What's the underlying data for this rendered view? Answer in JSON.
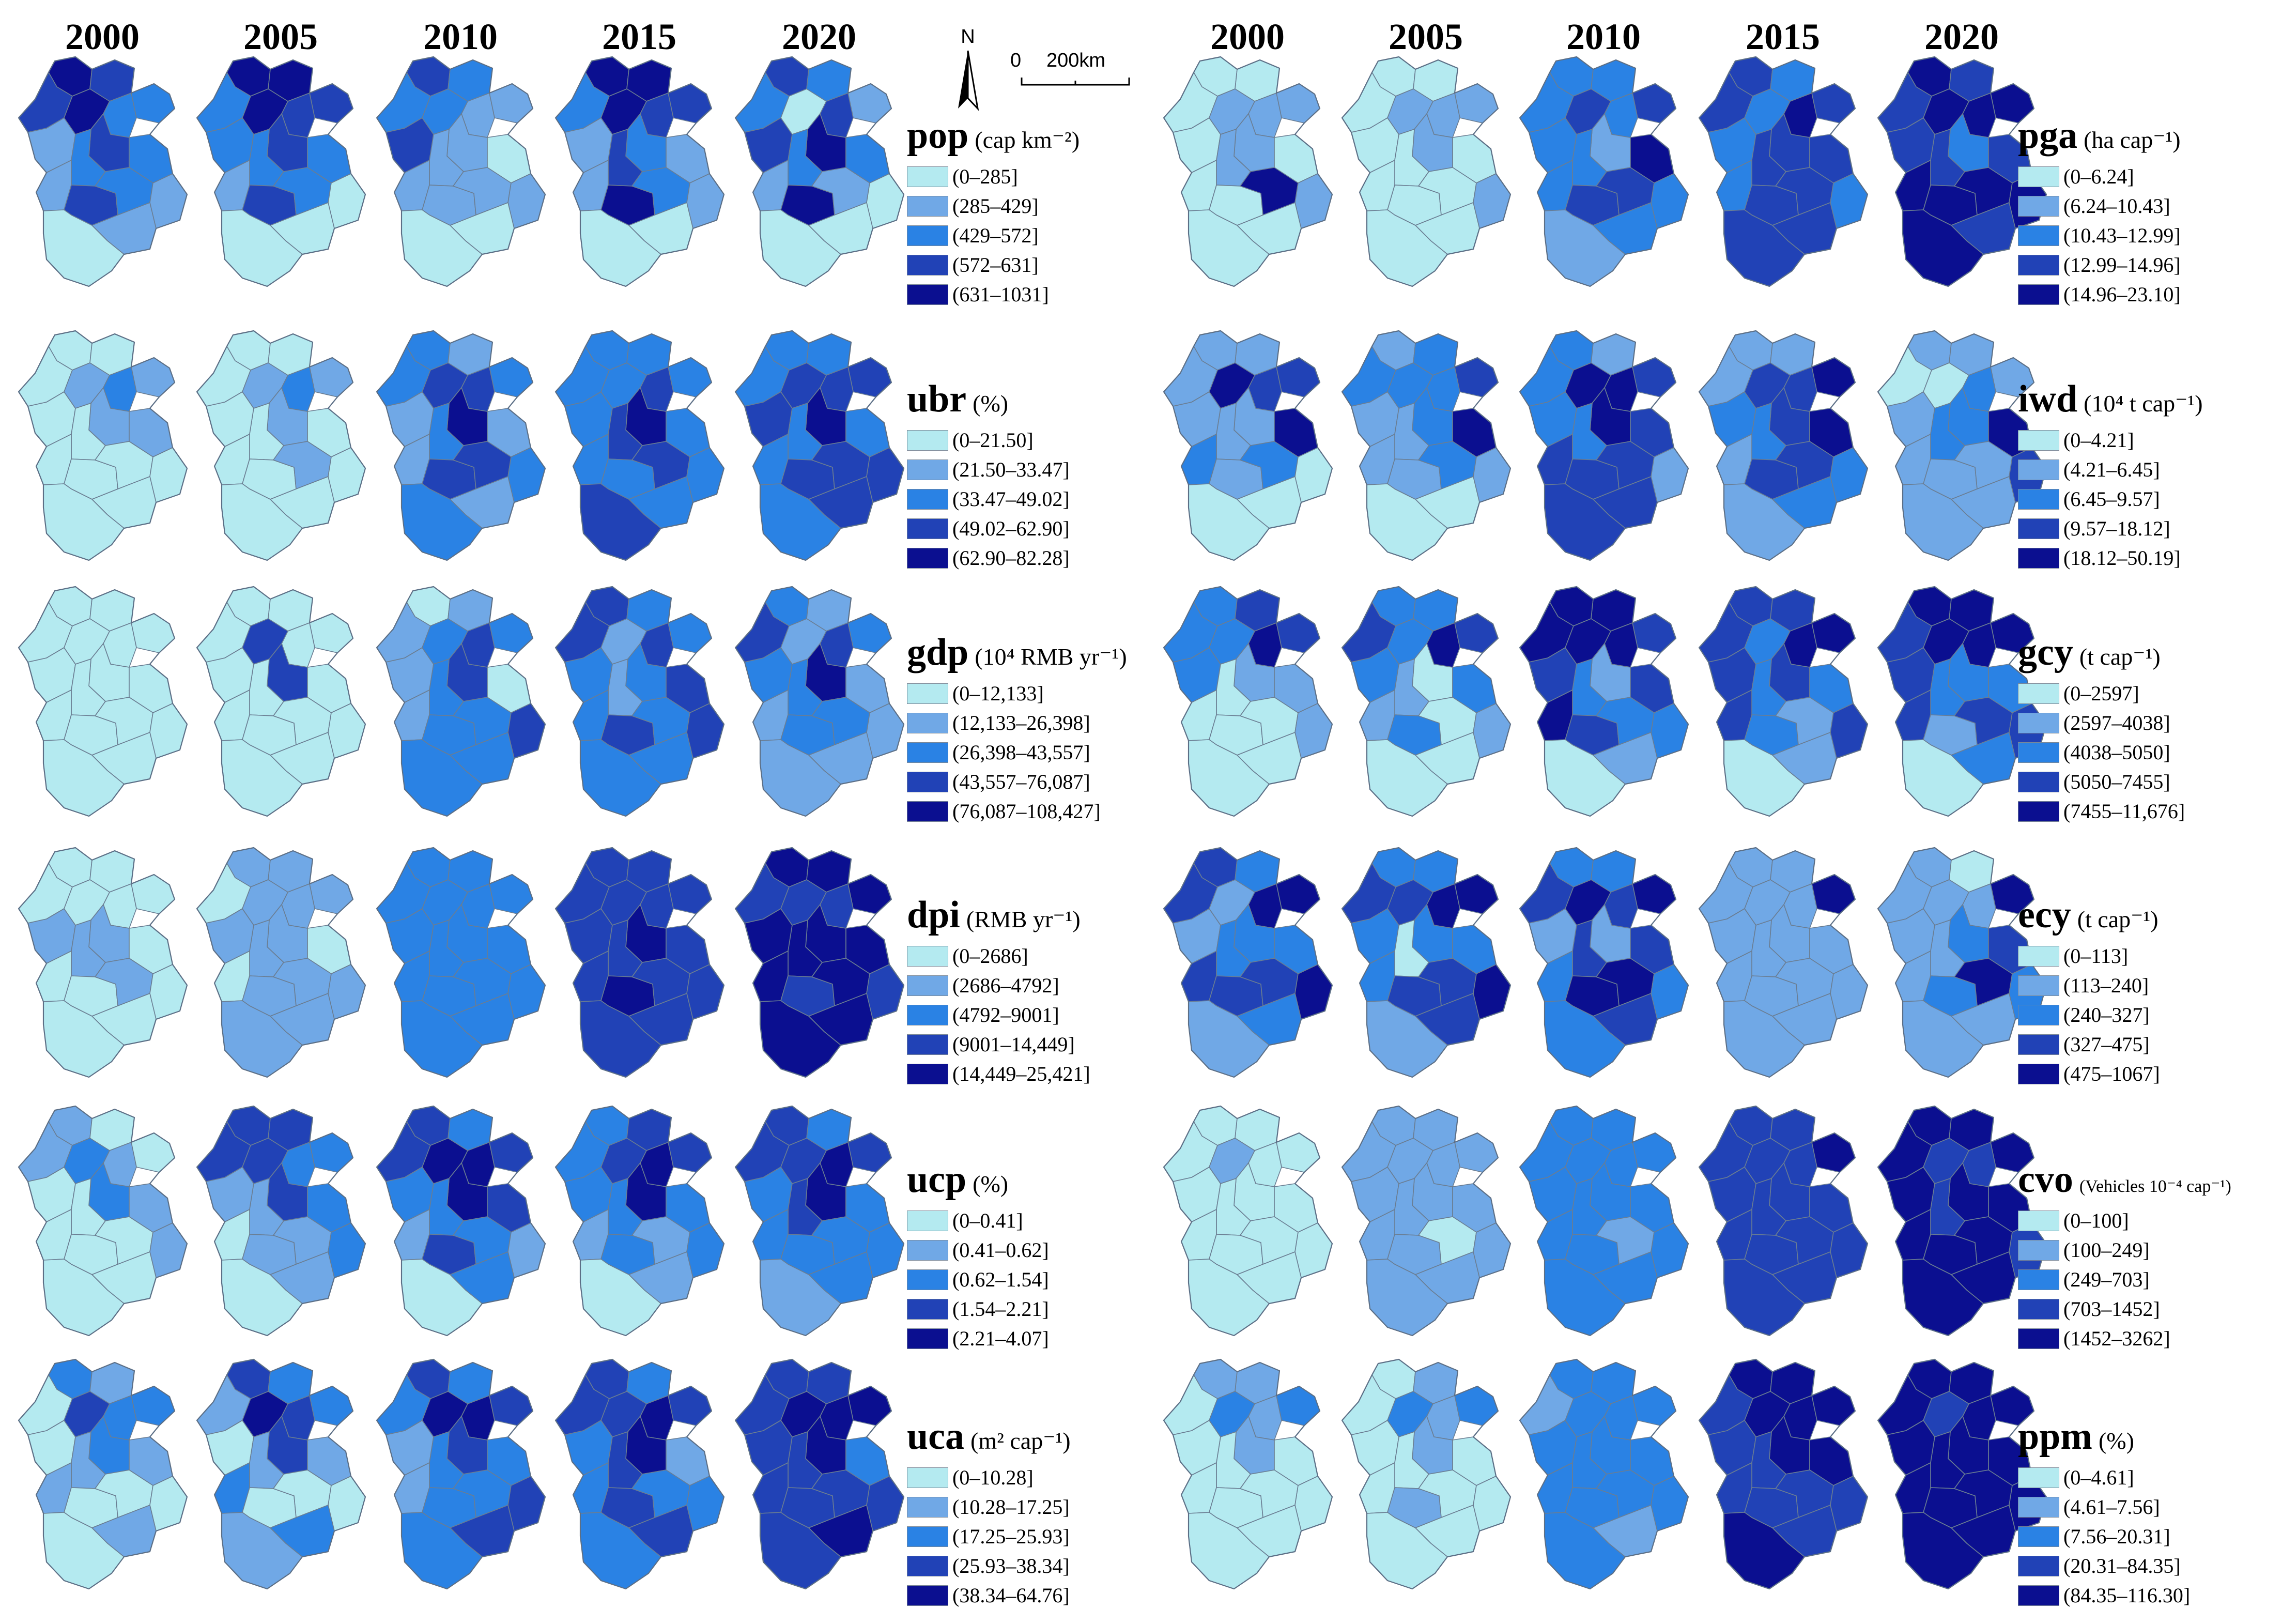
{
  "years_left": [
    "2000",
    "2005",
    "2010",
    "2015",
    "2020"
  ],
  "years_right": [
    "2000",
    "2005",
    "2010",
    "2015",
    "2020"
  ],
  "north_label": "N",
  "scale_start": "0",
  "scale_end": "200km",
  "palette": [
    "#b4eaf0",
    "#70a8e6",
    "#2a82e4",
    "#2142b6",
    "#0b0f90"
  ],
  "indicators": {
    "pop": {
      "abbr": "pop",
      "unit": "(cap km⁻²)",
      "classes": [
        "(0–285]",
        "(285–429]",
        "(429–572]",
        "(572–631]",
        "(631–1031]"
      ],
      "levels": [
        [
          4,
          3,
          2,
          2,
          3,
          1,
          4,
          3,
          2,
          1,
          3,
          2,
          2,
          1,
          1,
          0
        ],
        [
          4,
          4,
          3,
          3,
          2,
          2,
          4,
          3,
          2,
          1,
          3,
          2,
          2,
          0,
          0,
          0
        ],
        [
          3,
          2,
          1,
          1,
          2,
          3,
          2,
          1,
          1,
          1,
          1,
          0,
          1,
          1,
          0,
          0
        ],
        [
          4,
          4,
          3,
          3,
          2,
          1,
          4,
          2,
          3,
          1,
          4,
          1,
          2,
          1,
          0,
          0
        ],
        [
          3,
          2,
          1,
          3,
          2,
          3,
          0,
          4,
          2,
          1,
          4,
          2,
          1,
          0,
          0,
          0
        ]
      ]
    },
    "ubr": {
      "abbr": "ubr",
      "unit": "(%)",
      "classes": [
        "(0–21.50]",
        "(21.50–33.47]",
        "(33.47–49.02]",
        "(49.02–62.90]",
        "(62.90–82.28]"
      ],
      "levels": [
        [
          0,
          0,
          1,
          2,
          0,
          0,
          1,
          1,
          0,
          0,
          0,
          1,
          0,
          0,
          0,
          0
        ],
        [
          0,
          0,
          1,
          2,
          0,
          0,
          1,
          1,
          0,
          0,
          0,
          0,
          1,
          0,
          0,
          0
        ],
        [
          2,
          1,
          2,
          3,
          2,
          1,
          3,
          4,
          2,
          1,
          3,
          1,
          3,
          2,
          1,
          2
        ],
        [
          2,
          2,
          2,
          3,
          2,
          2,
          2,
          4,
          3,
          2,
          2,
          2,
          3,
          2,
          2,
          3
        ],
        [
          2,
          2,
          3,
          3,
          2,
          3,
          3,
          4,
          2,
          2,
          3,
          2,
          3,
          3,
          3,
          2
        ]
      ]
    },
    "gdp": {
      "abbr": "gdp",
      "unit": "(10⁴ RMB yr⁻¹)",
      "classes": [
        "(0–12,133]",
        "(12,133–26,398]",
        "(26,398–43,557]",
        "(43,557–76,087]",
        "(76,087–108,427]"
      ],
      "levels": [
        [
          0,
          0,
          0,
          0,
          0,
          0,
          0,
          0,
          0,
          0,
          0,
          0,
          0,
          0,
          0,
          0
        ],
        [
          0,
          0,
          0,
          0,
          0,
          0,
          3,
          3,
          0,
          0,
          0,
          0,
          0,
          0,
          0,
          0
        ],
        [
          0,
          1,
          2,
          3,
          1,
          1,
          2,
          3,
          2,
          1,
          2,
          0,
          2,
          3,
          2,
          2
        ],
        [
          3,
          2,
          2,
          3,
          3,
          2,
          1,
          2,
          1,
          2,
          3,
          3,
          2,
          3,
          2,
          2
        ],
        [
          2,
          1,
          2,
          3,
          3,
          2,
          1,
          4,
          2,
          1,
          2,
          1,
          2,
          1,
          1,
          1
        ]
      ]
    },
    "dpi": {
      "abbr": "dpi",
      "unit": "(RMB yr⁻¹)",
      "classes": [
        "(0–2686]",
        "(2686–4792]",
        "(4792–9001]",
        "(9001–14,449]",
        "(14,449–25,421]"
      ],
      "levels": [
        [
          0,
          0,
          0,
          0,
          0,
          1,
          0,
          1,
          1,
          0,
          0,
          0,
          1,
          0,
          0,
          0
        ],
        [
          1,
          1,
          1,
          1,
          0,
          1,
          1,
          1,
          1,
          0,
          1,
          0,
          1,
          1,
          1,
          1
        ],
        [
          2,
          2,
          2,
          2,
          2,
          2,
          2,
          2,
          2,
          2,
          2,
          2,
          2,
          2,
          2,
          2
        ],
        [
          3,
          3,
          3,
          3,
          3,
          3,
          3,
          4,
          3,
          3,
          4,
          3,
          3,
          3,
          3,
          3
        ],
        [
          4,
          4,
          4,
          3,
          3,
          4,
          3,
          4,
          4,
          4,
          3,
          4,
          4,
          3,
          4,
          4
        ]
      ]
    },
    "ucp": {
      "abbr": "ucp",
      "unit": "(%)",
      "classes": [
        "(0–0.41]",
        "(0.41–0.62]",
        "(0.62–1.54]",
        "(1.54–2.21]",
        "(2.21–4.07]"
      ],
      "levels": [
        [
          1,
          0,
          0,
          1,
          1,
          0,
          2,
          2,
          0,
          0,
          0,
          1,
          0,
          1,
          0,
          0
        ],
        [
          3,
          3,
          2,
          2,
          3,
          1,
          3,
          3,
          1,
          0,
          1,
          2,
          1,
          2,
          1,
          0
        ],
        [
          3,
          2,
          3,
          4,
          3,
          2,
          4,
          4,
          2,
          1,
          3,
          3,
          2,
          1,
          2,
          0
        ],
        [
          2,
          3,
          3,
          4,
          2,
          2,
          3,
          4,
          2,
          1,
          2,
          2,
          1,
          2,
          1,
          0
        ],
        [
          3,
          2,
          3,
          4,
          3,
          2,
          3,
          4,
          3,
          2,
          2,
          2,
          2,
          2,
          2,
          1
        ]
      ]
    },
    "uca": {
      "abbr": "uca",
      "unit": "(m² cap⁻¹)",
      "classes": [
        "(0–10.28]",
        "(10.28–17.25]",
        "(17.25–25.93]",
        "(25.93–38.34]",
        "(38.34–64.76]"
      ],
      "levels": [
        [
          2,
          1,
          2,
          2,
          0,
          0,
          3,
          2,
          1,
          1,
          0,
          1,
          0,
          0,
          1,
          0
        ],
        [
          3,
          2,
          2,
          3,
          1,
          0,
          4,
          3,
          1,
          2,
          0,
          1,
          0,
          0,
          2,
          1
        ],
        [
          3,
          2,
          3,
          4,
          2,
          1,
          4,
          3,
          2,
          1,
          2,
          2,
          2,
          3,
          3,
          2
        ],
        [
          3,
          2,
          3,
          4,
          3,
          2,
          3,
          4,
          3,
          2,
          3,
          1,
          2,
          2,
          3,
          2
        ],
        [
          3,
          3,
          4,
          4,
          3,
          3,
          4,
          4,
          3,
          3,
          3,
          2,
          3,
          3,
          4,
          3
        ]
      ]
    },
    "pga": {
      "abbr": "pga",
      "unit": "(ha cap⁻¹)",
      "classes": [
        "(0–6.24]",
        "(6.24–10.43]",
        "(10.43–12.99]",
        "(12.99–14.96]",
        "(14.96–23.10]"
      ],
      "levels": [
        [
          0,
          0,
          1,
          1,
          0,
          0,
          1,
          1,
          1,
          0,
          0,
          0,
          4,
          1,
          0,
          0
        ],
        [
          0,
          0,
          1,
          1,
          0,
          0,
          1,
          1,
          0,
          0,
          0,
          0,
          0,
          1,
          0,
          0
        ],
        [
          2,
          2,
          3,
          2,
          2,
          2,
          3,
          1,
          2,
          2,
          3,
          4,
          3,
          2,
          2,
          1
        ],
        [
          3,
          2,
          3,
          4,
          3,
          2,
          2,
          3,
          3,
          2,
          3,
          3,
          3,
          2,
          3,
          3
        ],
        [
          4,
          3,
          4,
          4,
          3,
          3,
          4,
          2,
          3,
          4,
          4,
          3,
          4,
          4,
          3,
          4
        ]
      ]
    },
    "iwd": {
      "abbr": "iwd",
      "unit": "(10⁴ t cap⁻¹)",
      "classes": [
        "(0–4.21]",
        "(4.21–6.45]",
        "(6.45–9.57]",
        "(9.57–18.12]",
        "(18.12–50.19]"
      ],
      "levels": [
        [
          1,
          1,
          3,
          3,
          1,
          1,
          4,
          1,
          1,
          2,
          1,
          4,
          2,
          0,
          0,
          0
        ],
        [
          1,
          2,
          3,
          2,
          2,
          1,
          2,
          2,
          1,
          1,
          1,
          4,
          2,
          1,
          0,
          0
        ],
        [
          2,
          1,
          3,
          4,
          2,
          2,
          4,
          4,
          2,
          3,
          3,
          3,
          3,
          1,
          3,
          3
        ],
        [
          1,
          1,
          4,
          3,
          1,
          2,
          3,
          3,
          2,
          1,
          3,
          4,
          3,
          2,
          2,
          1
        ],
        [
          1,
          1,
          1,
          2,
          0,
          1,
          0,
          2,
          2,
          1,
          1,
          4,
          1,
          3,
          1,
          1
        ]
      ]
    },
    "gcy": {
      "abbr": "gcy",
      "unit": "(t cap⁻¹)",
      "classes": [
        "(0–2597]",
        "(2597–4038]",
        "(4038–5050]",
        "(5050–7455]",
        "(7455–11,676]"
      ],
      "levels": [
        [
          2,
          3,
          3,
          4,
          2,
          2,
          2,
          1,
          0,
          0,
          0,
          1,
          0,
          1,
          0,
          0
        ],
        [
          2,
          2,
          3,
          4,
          3,
          2,
          2,
          0,
          1,
          1,
          2,
          2,
          0,
          1,
          0,
          0
        ],
        [
          4,
          4,
          3,
          4,
          4,
          3,
          4,
          1,
          2,
          4,
          3,
          3,
          2,
          2,
          1,
          0
        ],
        [
          3,
          3,
          4,
          4,
          3,
          3,
          2,
          3,
          2,
          3,
          2,
          2,
          1,
          3,
          1,
          0
        ],
        [
          4,
          4,
          4,
          4,
          3,
          3,
          4,
          2,
          2,
          3,
          1,
          2,
          3,
          3,
          2,
          0
        ]
      ]
    },
    "ecy": {
      "abbr": "ecy",
      "unit": "(t cap⁻¹)",
      "classes": [
        "(0–113]",
        "(113–240]",
        "(240–327]",
        "(327–475]",
        "(475–1067]"
      ],
      "levels": [
        [
          3,
          2,
          4,
          4,
          3,
          1,
          1,
          2,
          2,
          3,
          3,
          2,
          3,
          4,
          2,
          1
        ],
        [
          2,
          2,
          4,
          4,
          3,
          2,
          3,
          2,
          0,
          2,
          3,
          2,
          3,
          4,
          3,
          1
        ],
        [
          2,
          2,
          4,
          3,
          3,
          1,
          4,
          1,
          3,
          2,
          4,
          3,
          4,
          2,
          3,
          2
        ],
        [
          1,
          1,
          4,
          1,
          1,
          1,
          1,
          1,
          1,
          1,
          1,
          1,
          1,
          1,
          1,
          1
        ],
        [
          1,
          0,
          4,
          1,
          1,
          1,
          1,
          2,
          1,
          1,
          2,
          3,
          4,
          2,
          1,
          1
        ]
      ]
    },
    "cvo": {
      "abbr": "cvo",
      "unit": "(Vehicles 10⁻⁴ cap⁻¹)",
      "classes": [
        "(0–100]",
        "(100–249]",
        "(249–703]",
        "(703–1452]",
        "(1452–3262]"
      ],
      "levels": [
        [
          0,
          0,
          0,
          0,
          0,
          0,
          1,
          0,
          0,
          0,
          0,
          0,
          0,
          0,
          0,
          0
        ],
        [
          1,
          1,
          1,
          1,
          1,
          1,
          1,
          1,
          1,
          1,
          1,
          1,
          0,
          1,
          1,
          1
        ],
        [
          2,
          2,
          2,
          2,
          2,
          2,
          2,
          2,
          2,
          2,
          2,
          2,
          1,
          2,
          2,
          2
        ],
        [
          3,
          3,
          4,
          3,
          3,
          3,
          3,
          3,
          3,
          3,
          3,
          3,
          3,
          3,
          3,
          3
        ],
        [
          4,
          4,
          4,
          3,
          4,
          4,
          3,
          4,
          3,
          4,
          4,
          4,
          4,
          3,
          4,
          4
        ]
      ]
    },
    "ppm": {
      "abbr": "ppm",
      "unit": "(%)",
      "classes": [
        "(0–4.61]",
        "(4.61–7.56]",
        "(7.56–20.31]",
        "(20.31–84.35]",
        "(84.35–116.30]"
      ],
      "levels": [
        [
          1,
          1,
          2,
          1,
          0,
          0,
          2,
          1,
          0,
          0,
          0,
          0,
          0,
          0,
          0,
          0
        ],
        [
          0,
          1,
          2,
          1,
          0,
          0,
          2,
          1,
          0,
          0,
          1,
          0,
          0,
          0,
          0,
          0
        ],
        [
          2,
          2,
          2,
          2,
          1,
          2,
          2,
          2,
          2,
          2,
          2,
          2,
          2,
          2,
          1,
          2
        ],
        [
          4,
          4,
          4,
          4,
          3,
          3,
          4,
          4,
          3,
          3,
          3,
          4,
          3,
          3,
          3,
          4
        ],
        [
          4,
          4,
          4,
          4,
          4,
          4,
          3,
          4,
          4,
          4,
          4,
          4,
          4,
          4,
          4,
          4
        ]
      ]
    }
  },
  "rows_left": [
    "pop",
    "ubr",
    "gdp",
    "dpi",
    "ucp",
    "uca"
  ],
  "rows_right": [
    "pga",
    "iwd",
    "gcy",
    "ecy",
    "cvo",
    "ppm"
  ]
}
